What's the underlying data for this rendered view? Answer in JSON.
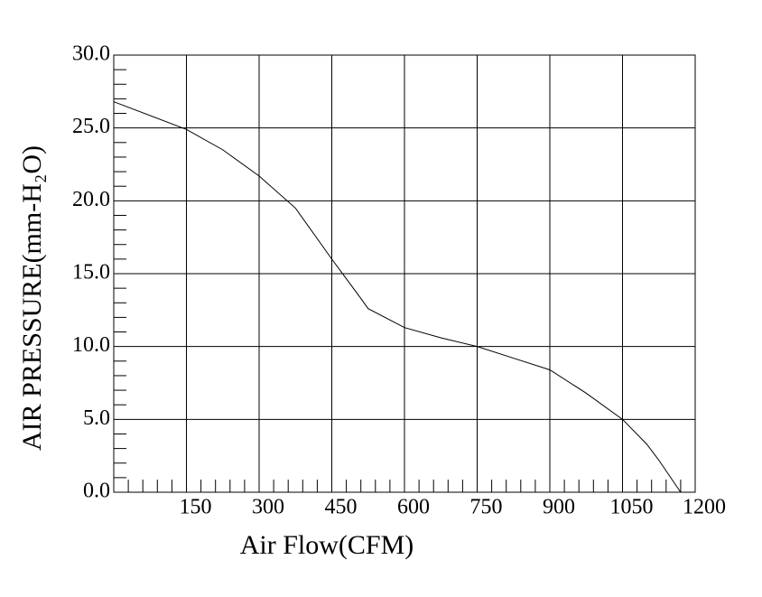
{
  "chart_data": {
    "type": "line",
    "x_label": "Air Flow(CFM)",
    "y_label": "AIR PRESSURE(mm-H₂O)",
    "xlim": [
      0,
      1200
    ],
    "xticks": [
      150,
      300,
      450,
      600,
      750,
      900,
      1050,
      1200
    ],
    "ylim": [
      0,
      30
    ],
    "yticks": [
      {
        "value": 0,
        "label": "0.0"
      },
      {
        "value": 5,
        "label": "5.0"
      },
      {
        "value": 10,
        "label": "10.0"
      },
      {
        "value": 15,
        "label": "15.0"
      },
      {
        "value": 20,
        "label": "20.0"
      },
      {
        "value": 25,
        "label": "25.0"
      },
      {
        "value": 30,
        "label": "30.0"
      }
    ],
    "grid": true,
    "series": [
      {
        "color": "#000000",
        "x": [
          0,
          150,
          225,
          300,
          375,
          450,
          510,
          525,
          600,
          675,
          750,
          825,
          900,
          975,
          1050,
          1100,
          1125,
          1170
        ],
        "values": [
          26.8,
          24.9,
          23.5,
          21.7,
          19.5,
          16.0,
          13.3,
          12.6,
          11.3,
          10.6,
          10.0,
          9.2,
          8.4,
          6.8,
          5.0,
          3.3,
          2.2,
          0
        ]
      }
    ]
  }
}
